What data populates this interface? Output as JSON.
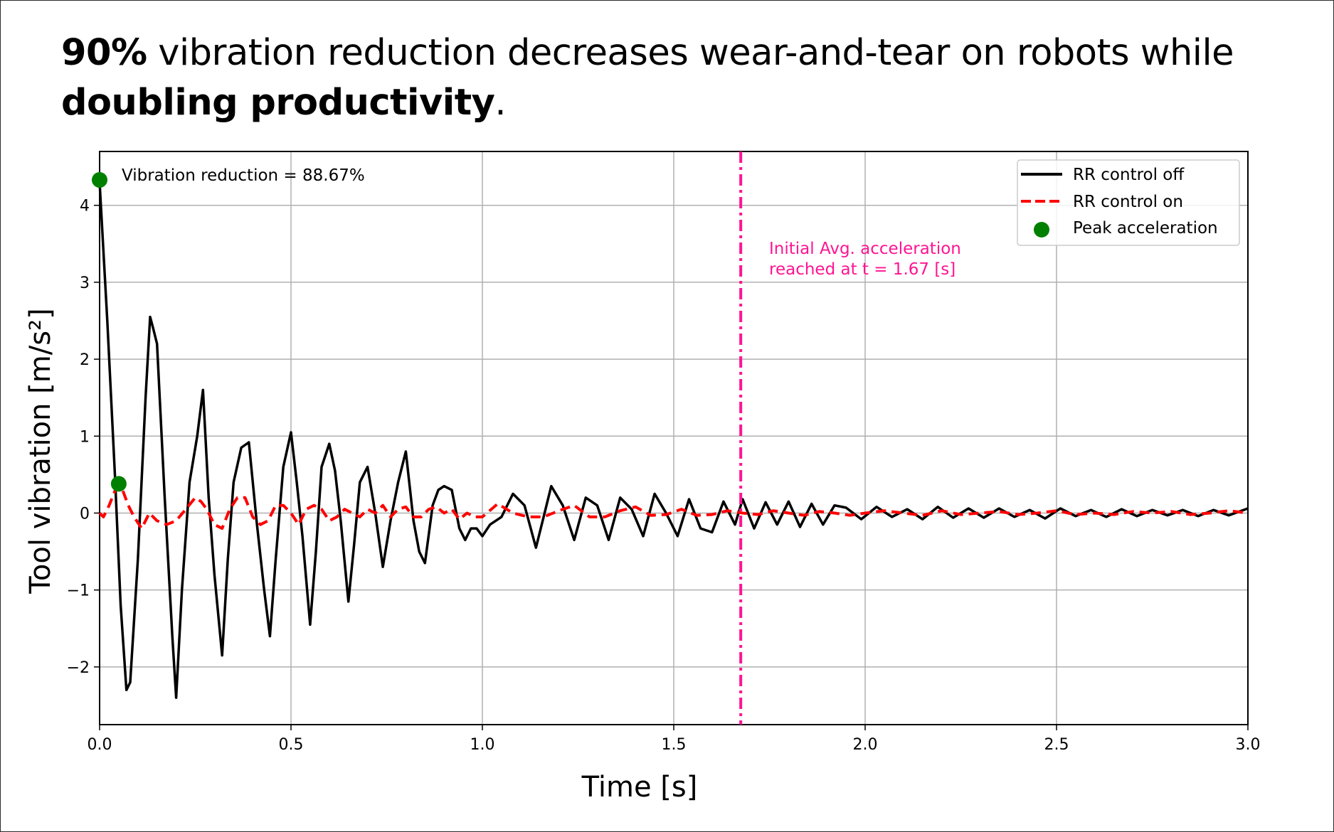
{
  "headline": {
    "strong_lead": "90%",
    "middle": " vibration reduction decreases wear-and-tear on robots while ",
    "strong_tail": "doubling productivity",
    "end": "."
  },
  "chart_data": {
    "type": "line",
    "xlabel": "Time [s]",
    "ylabel": "Tool vibration [m/s²]",
    "xlim": [
      0.0,
      3.0
    ],
    "ylim": [
      -2.75,
      4.7
    ],
    "xticks": [
      "0.0",
      "0.5",
      "1.0",
      "1.5",
      "2.0",
      "2.5",
      "3.0"
    ],
    "yticks": [
      "−2",
      "−1",
      "0",
      "1",
      "2",
      "3",
      "4"
    ],
    "grid": true,
    "legend_position": "top-right",
    "legend": {
      "off_label": "RR control off",
      "on_label": "RR control on",
      "peak_label": "Peak acceleration"
    },
    "annotations": {
      "reduction_text": "Vibration reduction = 88.67%",
      "threshold_line1": "Initial Avg. acceleration",
      "threshold_line2": "reached at t = 1.67 [s]"
    },
    "threshold_x": 1.675,
    "peak_points": [
      {
        "x": 0.0,
        "y": 4.33,
        "series": "RR control off"
      },
      {
        "x": 0.05,
        "y": 0.38,
        "series": "RR control on"
      }
    ],
    "colors": {
      "off": "#000000",
      "on": "#ff0000",
      "threshold": "#ff1493",
      "peak": "#008000",
      "grid": "#b0b0b0"
    },
    "series": [
      {
        "name": "RR control off",
        "style": "solid",
        "x": [
          0.0,
          0.02,
          0.04,
          0.055,
          0.07,
          0.08,
          0.1,
          0.12,
          0.132,
          0.14,
          0.15,
          0.17,
          0.19,
          0.2,
          0.215,
          0.235,
          0.255,
          0.27,
          0.285,
          0.3,
          0.32,
          0.335,
          0.35,
          0.37,
          0.39,
          0.41,
          0.43,
          0.445,
          0.46,
          0.48,
          0.5,
          0.515,
          0.53,
          0.55,
          0.565,
          0.58,
          0.6,
          0.615,
          0.63,
          0.65,
          0.665,
          0.68,
          0.7,
          0.72,
          0.74,
          0.76,
          0.78,
          0.8,
          0.82,
          0.835,
          0.85,
          0.87,
          0.885,
          0.9,
          0.92,
          0.94,
          0.955,
          0.97,
          0.985,
          1.0,
          1.02,
          1.05,
          1.08,
          1.11,
          1.14,
          1.16,
          1.18,
          1.21,
          1.24,
          1.27,
          1.3,
          1.33,
          1.36,
          1.39,
          1.42,
          1.45,
          1.48,
          1.51,
          1.54,
          1.57,
          1.6,
          1.63,
          1.66,
          1.68,
          1.71,
          1.74,
          1.77,
          1.8,
          1.83,
          1.86,
          1.89,
          1.92,
          1.95,
          1.99,
          2.03,
          2.07,
          2.11,
          2.15,
          2.19,
          2.23,
          2.27,
          2.31,
          2.35,
          2.39,
          2.43,
          2.47,
          2.51,
          2.55,
          2.59,
          2.63,
          2.67,
          2.71,
          2.75,
          2.79,
          2.83,
          2.87,
          2.91,
          2.95,
          3.0
        ],
        "y": [
          4.3,
          2.5,
          0.5,
          -1.2,
          -2.3,
          -2.2,
          -0.6,
          1.5,
          2.55,
          2.4,
          2.2,
          0.2,
          -1.6,
          -2.4,
          -1.0,
          0.4,
          1.0,
          1.6,
          0.2,
          -0.8,
          -1.85,
          -0.6,
          0.4,
          0.85,
          0.92,
          -0.1,
          -1.0,
          -1.6,
          -0.6,
          0.6,
          1.05,
          0.4,
          -0.3,
          -1.45,
          -0.5,
          0.6,
          0.9,
          0.55,
          -0.1,
          -1.15,
          -0.4,
          0.4,
          0.6,
          0.0,
          -0.7,
          -0.1,
          0.4,
          0.8,
          -0.1,
          -0.5,
          -0.65,
          0.1,
          0.3,
          0.35,
          0.3,
          -0.2,
          -0.35,
          -0.2,
          -0.2,
          -0.3,
          -0.15,
          -0.05,
          0.25,
          0.1,
          -0.45,
          -0.05,
          0.35,
          0.1,
          -0.35,
          0.2,
          0.1,
          -0.35,
          0.2,
          0.05,
          -0.3,
          0.25,
          0.0,
          -0.3,
          0.18,
          -0.2,
          -0.25,
          0.15,
          -0.15,
          0.18,
          -0.2,
          0.14,
          -0.15,
          0.15,
          -0.18,
          0.12,
          -0.15,
          0.1,
          0.07,
          -0.08,
          0.08,
          -0.05,
          0.05,
          -0.08,
          0.08,
          -0.06,
          0.06,
          -0.06,
          0.06,
          -0.05,
          0.04,
          -0.07,
          0.06,
          -0.04,
          0.04,
          -0.05,
          0.05,
          -0.04,
          0.04,
          -0.03,
          0.04,
          -0.04,
          0.04,
          -0.03,
          0.06
        ]
      },
      {
        "name": "RR control on",
        "style": "dashed",
        "x": [
          0.0,
          0.01,
          0.025,
          0.045,
          0.06,
          0.075,
          0.09,
          0.11,
          0.13,
          0.15,
          0.175,
          0.2,
          0.225,
          0.25,
          0.265,
          0.28,
          0.3,
          0.32,
          0.34,
          0.36,
          0.38,
          0.4,
          0.42,
          0.44,
          0.46,
          0.48,
          0.5,
          0.52,
          0.54,
          0.56,
          0.58,
          0.6,
          0.62,
          0.64,
          0.66,
          0.68,
          0.7,
          0.72,
          0.74,
          0.76,
          0.78,
          0.8,
          0.82,
          0.84,
          0.86,
          0.88,
          0.9,
          0.92,
          0.94,
          0.96,
          0.98,
          1.0,
          1.04,
          1.08,
          1.12,
          1.16,
          1.2,
          1.24,
          1.28,
          1.32,
          1.36,
          1.4,
          1.44,
          1.48,
          1.52,
          1.56,
          1.6,
          1.64,
          1.68,
          1.72,
          1.76,
          1.8,
          1.84,
          1.88,
          1.92,
          1.96,
          2.0,
          2.05,
          2.1,
          2.15,
          2.2,
          2.25,
          2.3,
          2.35,
          2.4,
          2.45,
          2.5,
          2.55,
          2.6,
          2.65,
          2.7,
          2.75,
          2.8,
          2.85,
          2.9,
          2.95,
          3.0
        ],
        "y": [
          0.0,
          -0.05,
          0.1,
          0.35,
          0.3,
          0.1,
          -0.05,
          -0.2,
          0.0,
          -0.1,
          -0.15,
          -0.1,
          0.05,
          0.2,
          0.15,
          0.05,
          -0.15,
          -0.2,
          0.05,
          0.2,
          0.2,
          -0.05,
          -0.15,
          -0.1,
          0.1,
          0.1,
          0.0,
          -0.15,
          0.05,
          0.1,
          0.05,
          -0.1,
          -0.05,
          0.05,
          0.0,
          -0.05,
          0.05,
          0.0,
          0.1,
          -0.05,
          0.05,
          0.08,
          -0.05,
          -0.05,
          0.05,
          0.08,
          0.0,
          0.05,
          -0.08,
          0.0,
          -0.05,
          -0.05,
          0.12,
          0.0,
          -0.05,
          -0.05,
          0.03,
          0.1,
          -0.05,
          -0.05,
          0.03,
          0.08,
          -0.03,
          -0.02,
          0.05,
          -0.03,
          -0.02,
          0.03,
          0.0,
          -0.02,
          0.03,
          0.0,
          -0.03,
          0.02,
          0.0,
          -0.03,
          0.0,
          0.03,
          0.0,
          -0.03,
          0.03,
          -0.02,
          0.0,
          0.02,
          -0.02,
          0.0,
          0.03,
          -0.02,
          0.0,
          -0.02,
          0.02,
          0.0,
          0.02,
          -0.02,
          0.0,
          0.03,
          0.0
        ]
      }
    ]
  }
}
